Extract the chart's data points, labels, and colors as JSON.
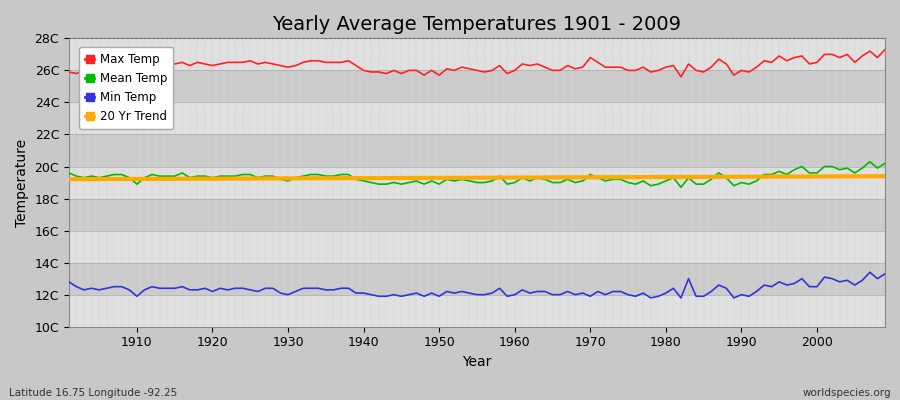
{
  "title": "Yearly Average Temperatures 1901 - 2009",
  "xlabel": "Year",
  "ylabel": "Temperature",
  "subtitle_lat": "Latitude 16.75 Longitude -92.25",
  "watermark": "worldspecies.org",
  "years": [
    1901,
    1902,
    1903,
    1904,
    1905,
    1906,
    1907,
    1908,
    1909,
    1910,
    1911,
    1912,
    1913,
    1914,
    1915,
    1916,
    1917,
    1918,
    1919,
    1920,
    1921,
    1922,
    1923,
    1924,
    1925,
    1926,
    1927,
    1928,
    1929,
    1930,
    1931,
    1932,
    1933,
    1934,
    1935,
    1936,
    1937,
    1938,
    1939,
    1940,
    1941,
    1942,
    1943,
    1944,
    1945,
    1946,
    1947,
    1948,
    1949,
    1950,
    1951,
    1952,
    1953,
    1954,
    1955,
    1956,
    1957,
    1958,
    1959,
    1960,
    1961,
    1962,
    1963,
    1964,
    1965,
    1966,
    1967,
    1968,
    1969,
    1970,
    1971,
    1972,
    1973,
    1974,
    1975,
    1976,
    1977,
    1978,
    1979,
    1980,
    1981,
    1982,
    1983,
    1984,
    1985,
    1986,
    1987,
    1988,
    1989,
    1990,
    1991,
    1992,
    1993,
    1994,
    1995,
    1996,
    1997,
    1998,
    1999,
    2000,
    2001,
    2002,
    2003,
    2004,
    2005,
    2006,
    2007,
    2008,
    2009
  ],
  "max_temp": [
    25.9,
    25.8,
    26.0,
    26.1,
    25.9,
    26.1,
    26.2,
    26.2,
    26.0,
    25.7,
    26.1,
    26.3,
    26.3,
    26.4,
    26.4,
    26.5,
    26.3,
    26.5,
    26.4,
    26.3,
    26.4,
    26.5,
    26.5,
    26.5,
    26.6,
    26.4,
    26.5,
    26.4,
    26.3,
    26.2,
    26.3,
    26.5,
    26.6,
    26.6,
    26.5,
    26.5,
    26.5,
    26.6,
    26.3,
    26.0,
    25.9,
    25.9,
    25.8,
    26.0,
    25.8,
    26.0,
    26.0,
    25.7,
    26.0,
    25.7,
    26.1,
    26.0,
    26.2,
    26.1,
    26.0,
    25.9,
    26.0,
    26.3,
    25.8,
    26.0,
    26.4,
    26.3,
    26.4,
    26.2,
    26.0,
    26.0,
    26.3,
    26.1,
    26.2,
    26.8,
    26.5,
    26.2,
    26.2,
    26.2,
    26.0,
    26.0,
    26.2,
    25.9,
    26.0,
    26.2,
    26.3,
    25.6,
    26.4,
    26.0,
    25.9,
    26.2,
    26.7,
    26.4,
    25.7,
    26.0,
    25.9,
    26.2,
    26.6,
    26.5,
    26.9,
    26.6,
    26.8,
    26.9,
    26.4,
    26.5,
    27.0,
    27.0,
    26.8,
    27.0,
    26.5,
    26.9,
    27.2,
    26.8,
    27.3
  ],
  "mean_temp": [
    19.6,
    19.4,
    19.3,
    19.4,
    19.3,
    19.4,
    19.5,
    19.5,
    19.3,
    18.9,
    19.3,
    19.5,
    19.4,
    19.4,
    19.4,
    19.6,
    19.3,
    19.4,
    19.4,
    19.3,
    19.4,
    19.4,
    19.4,
    19.5,
    19.5,
    19.3,
    19.4,
    19.4,
    19.2,
    19.1,
    19.3,
    19.4,
    19.5,
    19.5,
    19.4,
    19.4,
    19.5,
    19.5,
    19.2,
    19.1,
    19.0,
    18.9,
    18.9,
    19.0,
    18.9,
    19.0,
    19.1,
    18.9,
    19.1,
    18.9,
    19.2,
    19.1,
    19.2,
    19.1,
    19.0,
    19.0,
    19.1,
    19.4,
    18.9,
    19.0,
    19.3,
    19.1,
    19.3,
    19.2,
    19.0,
    19.0,
    19.2,
    19.0,
    19.1,
    19.5,
    19.3,
    19.1,
    19.2,
    19.2,
    19.0,
    18.9,
    19.1,
    18.8,
    18.9,
    19.1,
    19.3,
    18.7,
    19.3,
    18.9,
    18.9,
    19.2,
    19.6,
    19.3,
    18.8,
    19.0,
    18.9,
    19.1,
    19.5,
    19.5,
    19.7,
    19.5,
    19.8,
    20.0,
    19.6,
    19.6,
    20.0,
    20.0,
    19.8,
    19.9,
    19.6,
    19.9,
    20.3,
    19.9,
    20.2
  ],
  "min_temp": [
    12.8,
    12.5,
    12.3,
    12.4,
    12.3,
    12.4,
    12.5,
    12.5,
    12.3,
    11.9,
    12.3,
    12.5,
    12.4,
    12.4,
    12.4,
    12.5,
    12.3,
    12.3,
    12.4,
    12.2,
    12.4,
    12.3,
    12.4,
    12.4,
    12.3,
    12.2,
    12.4,
    12.4,
    12.1,
    12.0,
    12.2,
    12.4,
    12.4,
    12.4,
    12.3,
    12.3,
    12.4,
    12.4,
    12.1,
    12.1,
    12.0,
    11.9,
    11.9,
    12.0,
    11.9,
    12.0,
    12.1,
    11.9,
    12.1,
    11.9,
    12.2,
    12.1,
    12.2,
    12.1,
    12.0,
    12.0,
    12.1,
    12.4,
    11.9,
    12.0,
    12.3,
    12.1,
    12.2,
    12.2,
    12.0,
    12.0,
    12.2,
    12.0,
    12.1,
    11.9,
    12.2,
    12.0,
    12.2,
    12.2,
    12.0,
    11.9,
    12.1,
    11.8,
    11.9,
    12.1,
    12.4,
    11.8,
    13.0,
    11.9,
    11.9,
    12.2,
    12.6,
    12.4,
    11.8,
    12.0,
    11.9,
    12.2,
    12.6,
    12.5,
    12.8,
    12.6,
    12.7,
    13.0,
    12.5,
    12.5,
    13.1,
    13.0,
    12.8,
    12.9,
    12.6,
    12.9,
    13.4,
    13.0,
    13.3
  ],
  "ylim": [
    10,
    28
  ],
  "yticks": [
    10,
    12,
    14,
    16,
    18,
    20,
    22,
    24,
    26,
    28
  ],
  "ytick_labels": [
    "10C",
    "12C",
    "14C",
    "16C",
    "18C",
    "20C",
    "22C",
    "24C",
    "26C",
    "28C"
  ],
  "xlim": [
    1901,
    2009
  ],
  "xticks": [
    1910,
    1920,
    1930,
    1940,
    1950,
    1960,
    1970,
    1980,
    1990,
    2000
  ],
  "color_max": "#ff2222",
  "color_mean": "#00bb00",
  "color_min": "#3333dd",
  "color_trend": "#ffaa00",
  "color_bg_light": "#e8e8e8",
  "color_bg_dark": "#d4d4d4",
  "color_dashed_top": "#555555",
  "legend_labels": [
    "Max Temp",
    "Mean Temp",
    "Min Temp",
    "20 Yr Trend"
  ],
  "legend_colors": [
    "#ff2222",
    "#00bb00",
    "#3333dd",
    "#ffaa00"
  ],
  "title_fontsize": 14,
  "axis_label_fontsize": 10,
  "tick_fontsize": 9
}
